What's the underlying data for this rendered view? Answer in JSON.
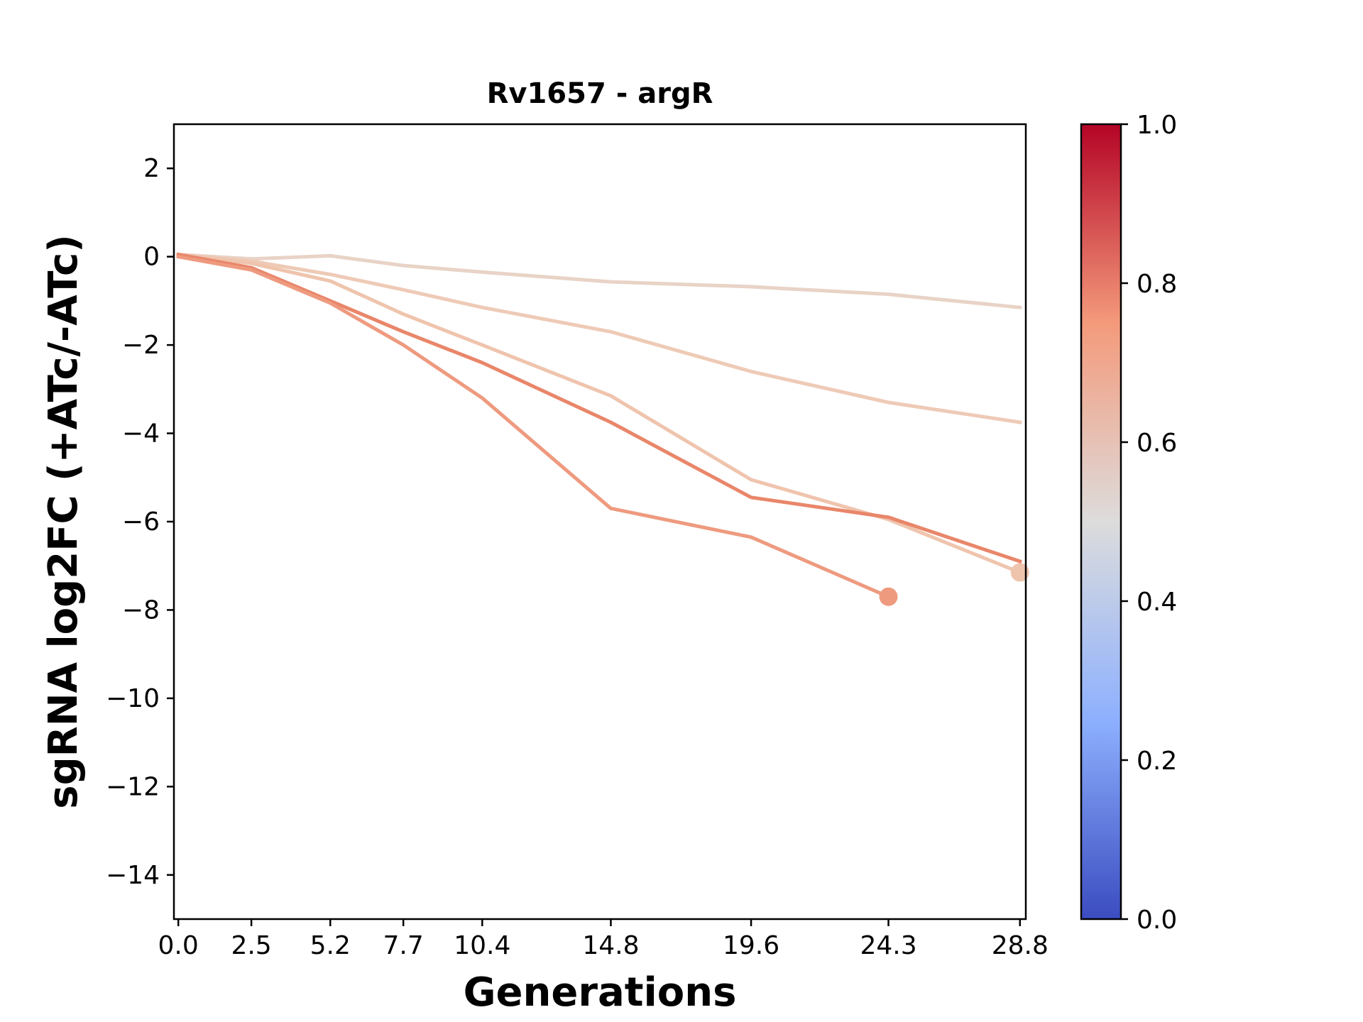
{
  "chart_data": {
    "type": "line",
    "title": "Rv1657 - argR",
    "xlabel": "Generations",
    "ylabel": "sgRNA log2FC (+ATc/-ATc)",
    "xlim": [
      -0.15,
      29.0
    ],
    "ylim": [
      -15,
      3
    ],
    "x_ticks": [
      0.0,
      2.5,
      5.2,
      7.7,
      10.4,
      14.8,
      19.6,
      24.3,
      28.8
    ],
    "x_tick_labels": [
      "0.0",
      "2.5",
      "5.2",
      "7.7",
      "10.4",
      "14.8",
      "19.6",
      "24.3",
      "28.8"
    ],
    "y_ticks": [
      2,
      0,
      -2,
      -4,
      -6,
      -8,
      -10,
      -12,
      -14
    ],
    "y_tick_labels": [
      "2",
      "0",
      "−2",
      "−4",
      "−6",
      "−8",
      "−10",
      "−12",
      "−14"
    ],
    "grid": false,
    "series": [
      {
        "color": "#e8d3c6",
        "x": [
          0.0,
          2.5,
          5.2,
          7.7,
          10.4,
          14.8,
          19.6,
          24.3,
          28.8
        ],
        "y": [
          0.05,
          -0.05,
          0.02,
          -0.2,
          -0.35,
          -0.57,
          -0.68,
          -0.85,
          -1.15
        ]
      },
      {
        "color": "#eecab6",
        "x": [
          0.0,
          2.5,
          5.2,
          7.7,
          10.4,
          14.8,
          19.6,
          24.3,
          28.8
        ],
        "y": [
          0.05,
          -0.1,
          -0.4,
          -0.75,
          -1.15,
          -1.7,
          -2.6,
          -3.3,
          -3.75
        ]
      },
      {
        "color": "#efc4ad",
        "x": [
          0.0,
          2.5,
          5.2,
          7.7,
          10.4,
          14.8,
          19.6,
          24.3,
          28.8
        ],
        "y": [
          0.05,
          -0.15,
          -0.55,
          -1.3,
          -2.0,
          -3.15,
          -5.05,
          -5.95,
          -7.15
        ],
        "end_marker": true
      },
      {
        "color": "#e9866a",
        "x": [
          0.0,
          2.5,
          5.2,
          7.7,
          10.4,
          14.8,
          19.6,
          24.3,
          28.8
        ],
        "y": [
          0.05,
          -0.25,
          -1.0,
          -1.7,
          -2.4,
          -3.75,
          -5.45,
          -5.9,
          -6.9
        ]
      },
      {
        "color": "#ee9a7f",
        "x": [
          0.0,
          2.5,
          5.2,
          7.7,
          10.4,
          14.8,
          19.6,
          24.3
        ],
        "y": [
          0.0,
          -0.3,
          -1.05,
          -2.0,
          -3.2,
          -5.7,
          -6.35,
          -7.7
        ],
        "end_marker": true
      }
    ],
    "colorbar": {
      "colormap": "coolwarm",
      "range": [
        0.0,
        1.0
      ],
      "ticks": [
        0.0,
        0.2,
        0.4,
        0.6,
        0.8,
        1.0
      ],
      "tick_labels": [
        "0.0",
        "0.2",
        "0.4",
        "0.6",
        "0.8",
        "1.0"
      ],
      "stops": [
        {
          "offset": 0.0,
          "color": "#3b4cc0"
        },
        {
          "offset": 0.25,
          "color": "#8db0fe"
        },
        {
          "offset": 0.5,
          "color": "#dddcdc"
        },
        {
          "offset": 0.75,
          "color": "#f49a7b"
        },
        {
          "offset": 1.0,
          "color": "#b40426"
        }
      ]
    }
  }
}
